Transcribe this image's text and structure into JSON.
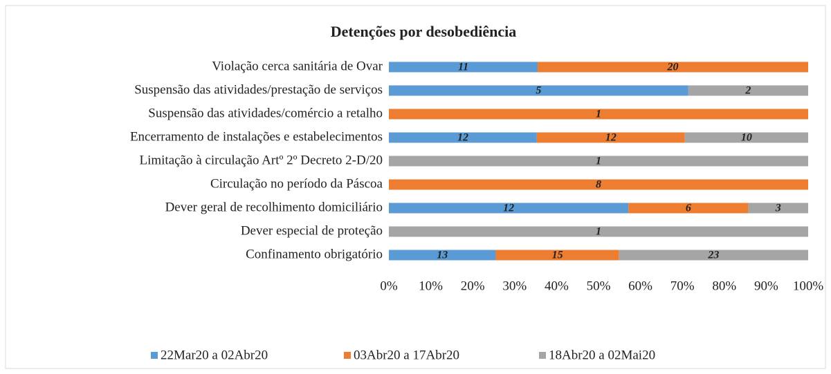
{
  "chart_data": {
    "type": "bar",
    "orientation": "horizontal",
    "stacking": "percent",
    "title": "Detenções por desobediência",
    "categories": [
      "Violação cerca sanitária de Ovar",
      "Suspensão das atividades/prestação de serviços",
      "Suspensão das atividades/comércio a retalho",
      "Encerramento de instalações e estabelecimentos",
      "Limitação à circulação Artº 2º Decreto 2-D/20",
      "Circulação no período da Páscoa",
      "Dever geral de recolhimento domiciliário",
      "Dever especial de proteção",
      "Confinamento obrigatório"
    ],
    "series": [
      {
        "name": "22Mar20 a 02Abr20",
        "color": "#5b9bd5",
        "values": [
          11,
          5,
          null,
          12,
          null,
          null,
          12,
          null,
          13
        ]
      },
      {
        "name": "03Abr20 a 17Abr20",
        "color": "#ed7d31",
        "values": [
          20,
          null,
          1,
          12,
          null,
          8,
          6,
          null,
          15
        ]
      },
      {
        "name": "18Abr20 a 02Mai20",
        "color": "#a5a5a5",
        "values": [
          null,
          2,
          null,
          10,
          1,
          null,
          3,
          1,
          23
        ]
      }
    ],
    "xlim": [
      0,
      100
    ],
    "xticks": [
      {
        "value": 0,
        "label": "0%"
      },
      {
        "value": 10,
        "label": "10%"
      },
      {
        "value": 20,
        "label": "20%"
      },
      {
        "value": 30,
        "label": "30%"
      },
      {
        "value": 40,
        "label": "40%"
      },
      {
        "value": 50,
        "label": "50%"
      },
      {
        "value": 60,
        "label": "60%"
      },
      {
        "value": 70,
        "label": "70%"
      },
      {
        "value": 80,
        "label": "80%"
      },
      {
        "value": 90,
        "label": "90%"
      },
      {
        "value": 100,
        "label": "100%"
      }
    ],
    "legend": "bottom"
  }
}
